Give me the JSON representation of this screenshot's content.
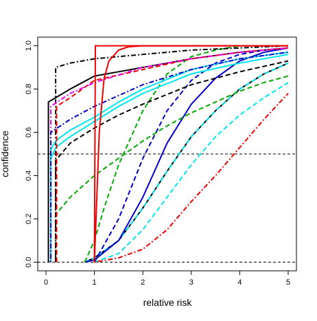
{
  "chart_data": {
    "type": "line",
    "x_label": "relative risk",
    "y_label": "confidence",
    "xlim": [
      -0.17,
      5.17
    ],
    "ylim": [
      -0.04,
      1.04
    ],
    "xticks": [
      0,
      1,
      2,
      3,
      4,
      5
    ],
    "yticks": [
      {
        "value": 0,
        "label": "0.0"
      },
      {
        "value": 0.2,
        "label": "0.2"
      },
      {
        "value": 0.4,
        "label": "0.4"
      },
      {
        "value": 0.6,
        "label": "0.6"
      },
      {
        "value": 0.8,
        "label": "0.8"
      },
      {
        "value": 1,
        "label": "1.0"
      }
    ],
    "hlines": [
      0,
      0.5
    ],
    "series": [
      {
        "color": "#000000",
        "dash": "solid",
        "x": [
          0.8,
          1,
          1.5,
          2,
          2.5,
          3,
          3.5,
          4,
          4.5,
          5
        ],
        "values": [
          0,
          0.02,
          0.1,
          0.25,
          0.42,
          0.58,
          0.7,
          0.8,
          0.87,
          0.92
        ]
      },
      {
        "color": "#00e5ee",
        "dash": "dashed",
        "x": [
          0.8,
          1,
          1.5,
          2,
          2.5,
          3,
          3.5,
          4,
          4.5,
          5
        ],
        "values": [
          0,
          0.02,
          0.1,
          0.25,
          0.42,
          0.58,
          0.7,
          0.8,
          0.87,
          0.92
        ]
      },
      {
        "color": "#0000cd",
        "dash": "solid",
        "x": [
          0.8,
          1,
          1.5,
          2,
          2.5,
          3,
          3.5,
          4,
          4.5,
          5
        ],
        "values": [
          0,
          0.01,
          0.1,
          0.3,
          0.55,
          0.73,
          0.85,
          0.93,
          0.97,
          0.99
        ]
      },
      {
        "color": "#00e5ee",
        "dash": "dashed",
        "x": [
          1,
          1.5,
          2,
          2.5,
          3,
          3.5,
          4,
          4.5,
          5
        ],
        "values": [
          0,
          0.04,
          0.15,
          0.3,
          0.45,
          0.58,
          0.68,
          0.76,
          0.83
        ]
      },
      {
        "color": "#ee0000",
        "dash": "dotdash",
        "x": [
          1,
          1.5,
          2,
          2.5,
          3,
          3.5,
          4,
          4.5,
          5
        ],
        "values": [
          0,
          0.02,
          0.06,
          0.15,
          0.28,
          0.4,
          0.53,
          0.66,
          0.78
        ]
      },
      {
        "color": "#00aa00",
        "dash": "dashed",
        "x": [
          0.8,
          1,
          1.2,
          1.5,
          2,
          2.5,
          3,
          3.5,
          4
        ],
        "values": [
          0,
          0.1,
          0.25,
          0.45,
          0.7,
          0.87,
          0.95,
          0.98,
          1
        ]
      },
      {
        "color": "#0000cd",
        "dash": "dashed",
        "x": [
          1,
          1.5,
          2,
          2.5,
          3,
          3.5,
          4,
          4.5,
          5
        ],
        "values": [
          0,
          0.2,
          0.48,
          0.7,
          0.84,
          0.92,
          0.96,
          0.98,
          0.99
        ]
      },
      {
        "color": "#00aa00",
        "dash": "dashed",
        "x": [
          0.2,
          0.2,
          0.5,
          1,
          1.5,
          2,
          2.5,
          3,
          3.5,
          4,
          4.5,
          5
        ],
        "values": [
          0,
          0.22,
          0.3,
          0.4,
          0.48,
          0.56,
          0.63,
          0.69,
          0.74,
          0.79,
          0.83,
          0.86
        ]
      },
      {
        "color": "#000000",
        "dash": "dotdash",
        "x": [
          0.2,
          0.2,
          0.5,
          1,
          2,
          3,
          4,
          5
        ],
        "values": [
          0,
          0.9,
          0.92,
          0.94,
          0.96,
          0.98,
          0.99,
          1
        ]
      },
      {
        "color": "#00e5ee",
        "dash": "solid",
        "x": [
          0.1,
          0.1,
          0.2,
          0.5,
          1,
          1.5,
          2,
          3,
          4,
          5
        ],
        "values": [
          0,
          0.48,
          0.53,
          0.58,
          0.65,
          0.72,
          0.78,
          0.87,
          0.92,
          0.96
        ]
      },
      {
        "color": "#00e5ee",
        "dash": "solid",
        "x": [
          0.1,
          0.1,
          0.2,
          0.5,
          1,
          1.5,
          2,
          3,
          4,
          5
        ],
        "values": [
          0,
          0.52,
          0.56,
          0.61,
          0.67,
          0.74,
          0.8,
          0.89,
          0.94,
          0.97
        ]
      },
      {
        "color": "#000000",
        "dash": "dashed",
        "x": [
          0.2,
          0.2,
          0.5,
          1,
          1.5,
          2,
          3,
          4,
          5
        ],
        "values": [
          0,
          0.47,
          0.55,
          0.62,
          0.68,
          0.73,
          0.82,
          0.88,
          0.93
        ]
      },
      {
        "color": "#000000",
        "dash": "solid",
        "x": [
          0.05,
          0.05,
          0.2,
          0.5,
          1,
          2,
          3,
          4,
          5
        ],
        "values": [
          0,
          0.74,
          0.76,
          0.8,
          0.86,
          0.9,
          0.94,
          0.97,
          0.99
        ]
      },
      {
        "color": "#ee0000",
        "dash": "dashed",
        "x": [
          0.22,
          0.22,
          0.5,
          1,
          2,
          3,
          4,
          5
        ],
        "values": [
          0,
          0.72,
          0.76,
          0.84,
          0.89,
          0.94,
          0.97,
          0.99
        ]
      },
      {
        "color": "#ee00ee",
        "dash": "dotdash",
        "x": [
          0.1,
          0.1,
          0.5,
          1,
          2,
          3,
          4,
          5
        ],
        "values": [
          0,
          0.72,
          0.78,
          0.83,
          0.9,
          0.94,
          0.97,
          0.99
        ]
      },
      {
        "color": "#0000cd",
        "dash": "dotdash",
        "x": [
          0.1,
          0.1,
          0.5,
          1,
          2,
          3,
          4,
          5
        ],
        "values": [
          0,
          0.6,
          0.66,
          0.72,
          0.82,
          0.89,
          0.94,
          0.97
        ]
      },
      {
        "color": "#ee0000",
        "dash": "solid",
        "x": [
          1,
          1.1,
          1.2,
          1.3,
          1.5,
          1.7,
          2,
          5
        ],
        "values": [
          0,
          0.6,
          0.85,
          0.93,
          0.98,
          0.995,
          1,
          1
        ]
      },
      {
        "color": "#ee0000",
        "dash": "solid",
        "x": [
          1,
          1.02,
          5
        ],
        "values": [
          0,
          1,
          1
        ]
      }
    ]
  }
}
